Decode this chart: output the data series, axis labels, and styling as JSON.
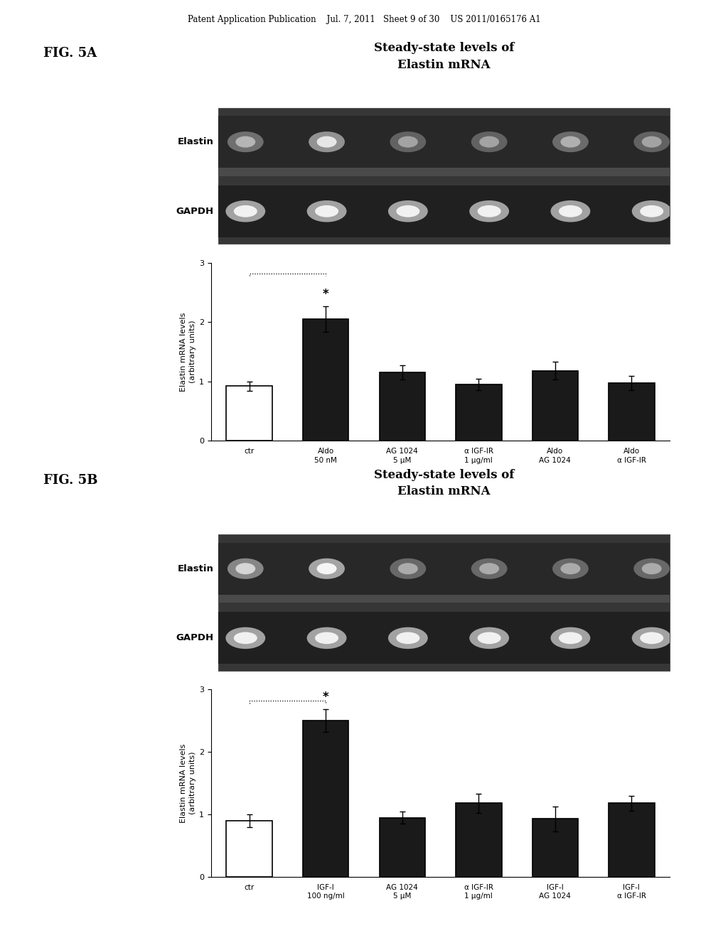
{
  "page_header": "Patent Application Publication    Jul. 7, 2011   Sheet 9 of 30    US 2011/0165176 A1",
  "fig5a": {
    "label": "FIG. 5A",
    "title_line1": "Steady-state levels of",
    "title_line2": "Elastin mRNA",
    "gel_label1": "Elastin",
    "gel_label2": "GAPDH",
    "ylabel": "Elastin mRNA levels\n(arbitrary units)",
    "ylim": [
      0,
      3
    ],
    "yticks": [
      0,
      1,
      2,
      3
    ],
    "categories": [
      "ctr",
      "Aldo\n50 nM",
      "AG 1024\n5 μM",
      "α IGF-IR\n1 μg/ml",
      "Aldo\nAG 1024",
      "Aldo\nα IGF-IR"
    ],
    "values": [
      0.92,
      2.05,
      1.15,
      0.95,
      1.18,
      0.97
    ],
    "errors": [
      0.08,
      0.22,
      0.12,
      0.1,
      0.15,
      0.12
    ],
    "bar_colors": [
      "white",
      "#1a1a1a",
      "#1a1a1a",
      "#1a1a1a",
      "#1a1a1a",
      "#1a1a1a"
    ],
    "bar_edgecolors": [
      "black",
      "black",
      "black",
      "black",
      "black",
      "black"
    ],
    "sig_indices": [
      0,
      1
    ],
    "elastin_bands": [
      0.62,
      0.82,
      0.55,
      0.55,
      0.6,
      0.55
    ],
    "gapdh_bands": [
      0.88,
      0.88,
      0.88,
      0.88,
      0.88,
      0.88
    ],
    "n_lanes": 6
  },
  "fig5b": {
    "label": "FIG. 5B",
    "title_line1": "Steady-state levels of",
    "title_line2": "Elastin mRNA",
    "gel_label1": "Elastin",
    "gel_label2": "GAPDH",
    "ylabel": "Elastin mRNA levels\n(arbitrary units)",
    "ylim": [
      0,
      3
    ],
    "yticks": [
      0,
      1,
      2,
      3
    ],
    "categories": [
      "ctr",
      "IGF-I\n100 ng/ml",
      "AG 1024\n5 μM",
      "α IGF-IR\n1 μg/ml",
      "IGF-I\nAG 1024",
      "IGF-I\nα IGF-IR"
    ],
    "values": [
      0.9,
      2.5,
      0.95,
      1.18,
      0.93,
      1.18
    ],
    "errors": [
      0.1,
      0.18,
      0.1,
      0.15,
      0.2,
      0.12
    ],
    "bar_colors": [
      "white",
      "#1a1a1a",
      "#1a1a1a",
      "#1a1a1a",
      "#1a1a1a",
      "#1a1a1a"
    ],
    "bar_edgecolors": [
      "black",
      "black",
      "black",
      "black",
      "black",
      "black"
    ],
    "sig_indices": [
      0,
      1
    ],
    "elastin_bands": [
      0.75,
      0.92,
      0.58,
      0.58,
      0.58,
      0.58
    ],
    "gapdh_bands": [
      0.88,
      0.88,
      0.88,
      0.88,
      0.88,
      0.88
    ],
    "n_lanes": 6
  },
  "gel_bg": "#2e2e2e",
  "gel_strip_bg": "#252525",
  "gel_separator": "#4a4a4a"
}
